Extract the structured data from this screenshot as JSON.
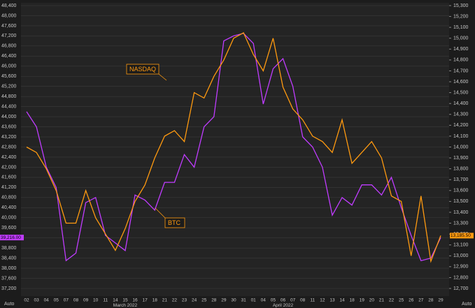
{
  "chart_data": {
    "type": "line",
    "categories": [
      "02",
      "03",
      "04",
      "05",
      "07",
      "08",
      "09",
      "10",
      "11",
      "14",
      "15",
      "16",
      "17",
      "18",
      "21",
      "22",
      "23",
      "24",
      "25",
      "28",
      "29",
      "30",
      "31",
      "01",
      "04",
      "05",
      "06",
      "07",
      "08",
      "11",
      "12",
      "13",
      "14",
      "18",
      "19",
      "20",
      "21",
      "22",
      "25",
      "26",
      "27",
      "28",
      "29"
    ],
    "month_labels": [
      "March 2022",
      "April 2022"
    ],
    "series": [
      {
        "name": "BTC",
        "color": "#c03cff",
        "axis": "y",
        "last_label": "39,216.00",
        "values": [
          44200,
          43600,
          42000,
          41200,
          38300,
          38600,
          40600,
          40800,
          39300,
          39000,
          38700,
          40900,
          40700,
          40300,
          41400,
          41400,
          42500,
          42000,
          43600,
          44000,
          47000,
          47200,
          47300,
          46900,
          44500,
          45900,
          46300,
          45200,
          43200,
          42800,
          42000,
          40100,
          40800,
          40500,
          41300,
          41300,
          40900,
          41600,
          40400,
          39300,
          38300,
          38400,
          39216
        ]
      },
      {
        "name": "NASDAQ",
        "color": "#ff9a10",
        "axis": "y2",
        "last_label": "13,185.50",
        "values": [
          14000,
          13950,
          13800,
          13600,
          13300,
          13300,
          13600,
          13350,
          13200,
          13050,
          13250,
          13500,
          13650,
          13900,
          14100,
          14150,
          14050,
          14500,
          14450,
          14650,
          14800,
          15000,
          15050,
          14850,
          14700,
          15000,
          14550,
          14350,
          14250,
          14100,
          14050,
          13950,
          14250,
          13850,
          13950,
          14050,
          13900,
          13550,
          13500,
          13000,
          13550,
          12950,
          13185.5
        ]
      }
    ],
    "ylim": [
      37200,
      48400
    ],
    "yticks": [
      {
        "value": 37200,
        "label": "37,200"
      },
      {
        "value": 37600,
        "label": "37,600"
      },
      {
        "value": 38000,
        "label": "38,000"
      },
      {
        "value": 38400,
        "label": "38,400"
      },
      {
        "value": 38800,
        "label": "38,800"
      },
      {
        "value": 39200,
        "label": "39,200"
      },
      {
        "value": 39600,
        "label": "39,600"
      },
      {
        "value": 40000,
        "label": "40,000"
      },
      {
        "value": 40400,
        "label": "40,400"
      },
      {
        "value": 40800,
        "label": "40,800"
      },
      {
        "value": 41200,
        "label": "41,200"
      },
      {
        "value": 41600,
        "label": "41,600"
      },
      {
        "value": 42000,
        "label": "42,000"
      },
      {
        "value": 42400,
        "label": "42,400"
      },
      {
        "value": 42800,
        "label": "42,800"
      },
      {
        "value": 43200,
        "label": "43,200"
      },
      {
        "value": 43600,
        "label": "43,600"
      },
      {
        "value": 44000,
        "label": "44,000"
      },
      {
        "value": 44400,
        "label": "44,400"
      },
      {
        "value": 44800,
        "label": "44,800"
      },
      {
        "value": 45200,
        "label": "45,200"
      },
      {
        "value": 45600,
        "label": "45,600"
      },
      {
        "value": 46000,
        "label": "46,000"
      },
      {
        "value": 46400,
        "label": "46,400"
      },
      {
        "value": 46800,
        "label": "46,800"
      },
      {
        "value": 47200,
        "label": "47,200"
      },
      {
        "value": 47600,
        "label": "47,600"
      },
      {
        "value": 48000,
        "label": "48,000"
      },
      {
        "value": 48400,
        "label": "48,400"
      }
    ],
    "y2lim": [
      12700,
      15300
    ],
    "y2ticks": [
      {
        "value": 12700,
        "label": "12,700"
      },
      {
        "value": 12800,
        "label": "12,800"
      },
      {
        "value": 12900,
        "label": "12,900"
      },
      {
        "value": 13000,
        "label": "13,000"
      },
      {
        "value": 13100,
        "label": "13,100"
      },
      {
        "value": 13200,
        "label": "13,200"
      },
      {
        "value": 13300,
        "label": "13,300"
      },
      {
        "value": 13400,
        "label": "13,400"
      },
      {
        "value": 13500,
        "label": "13,500"
      },
      {
        "value": 13600,
        "label": "13,600"
      },
      {
        "value": 13700,
        "label": "13,700"
      },
      {
        "value": 13800,
        "label": "13,800"
      },
      {
        "value": 13900,
        "label": "13,900"
      },
      {
        "value": 14000,
        "label": "14,000"
      },
      {
        "value": 14100,
        "label": "14,100"
      },
      {
        "value": 14200,
        "label": "14,200"
      },
      {
        "value": 14300,
        "label": "14,300"
      },
      {
        "value": 14400,
        "label": "14,400"
      },
      {
        "value": 14500,
        "label": "14,500"
      },
      {
        "value": 14600,
        "label": "14,600"
      },
      {
        "value": 14700,
        "label": "14,700"
      },
      {
        "value": 14800,
        "label": "14,800"
      },
      {
        "value": 14900,
        "label": "14,900"
      },
      {
        "value": 15000,
        "label": "15,000"
      },
      {
        "value": 15100,
        "label": "15,100"
      },
      {
        "value": 15200,
        "label": "15,200"
      },
      {
        "value": 15300,
        "label": "15,300"
      }
    ],
    "axis_mode_labels": [
      "Auto",
      "Auto"
    ],
    "grid": true
  }
}
